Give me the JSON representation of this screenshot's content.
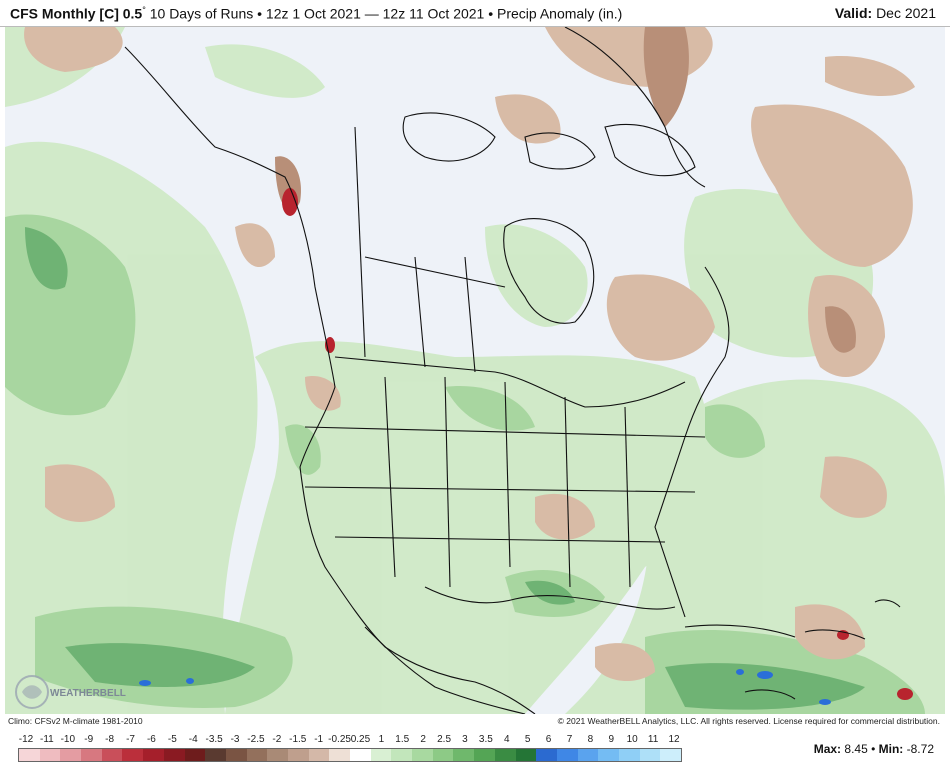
{
  "header": {
    "model": "CFS Monthly [C] 0.5",
    "degree": "°",
    "runs": "10 Days of Runs • 12z 1 Oct 2021 — 12z 11 Oct 2021 • Precip Anomaly (in.)",
    "valid_label": "Valid:",
    "valid_value": "Dec 2021"
  },
  "footer": {
    "climo": "Climo: CFSv2 M-climate 1981-2010",
    "copyright": "© 2021 WeatherBELL Analytics, LLC. All rights reserved. License required for commercial distribution.",
    "logo_text": "WEATHERBELL",
    "max_label": "Max:",
    "max_value": "8.45",
    "separator": "•",
    "min_label": "Min:",
    "min_value": "-8.72"
  },
  "legend": {
    "labels": [
      "-12",
      "-11",
      "-10",
      "-9",
      "-8",
      "-7",
      "-6",
      "-5",
      "-4",
      "-3.5",
      "-3",
      "-2.5",
      "-2",
      "-1.5",
      "-1",
      "-0.25",
      "0.25",
      "1",
      "1.5",
      "2",
      "2.5",
      "3",
      "3.5",
      "4",
      "5",
      "6",
      "7",
      "8",
      "9",
      "10",
      "11",
      "12"
    ],
    "colors": [
      "#f6d6d8",
      "#efbcc0",
      "#e49ca2",
      "#d77880",
      "#c94f5a",
      "#bb2f3b",
      "#a51f2b",
      "#8a1a22",
      "#6e1c1c",
      "#5a3a30",
      "#7a5443",
      "#93705c",
      "#a98a76",
      "#bf9f8d",
      "#d4b8a8",
      "#eee0d6",
      "#ffffff",
      "#d9f0d3",
      "#c2e6bb",
      "#a8d9a0",
      "#8dca86",
      "#6fb86c",
      "#54a555",
      "#3a8c43",
      "#247536",
      "#2b6ad0",
      "#3f87e6",
      "#5aa3ee",
      "#74bcf3",
      "#8fcff6",
      "#aee0f8",
      "#cdeefb"
    ]
  },
  "map": {
    "ocean_color": "#eef2f8",
    "green_light": "#cfe9c6",
    "green_mid": "#a8d6a0",
    "green_dark": "#6fb374",
    "brown_light": "#d8bba6",
    "brown_mid": "#b88f78",
    "red": "#b8242e",
    "blue": "#2a6ed8"
  }
}
